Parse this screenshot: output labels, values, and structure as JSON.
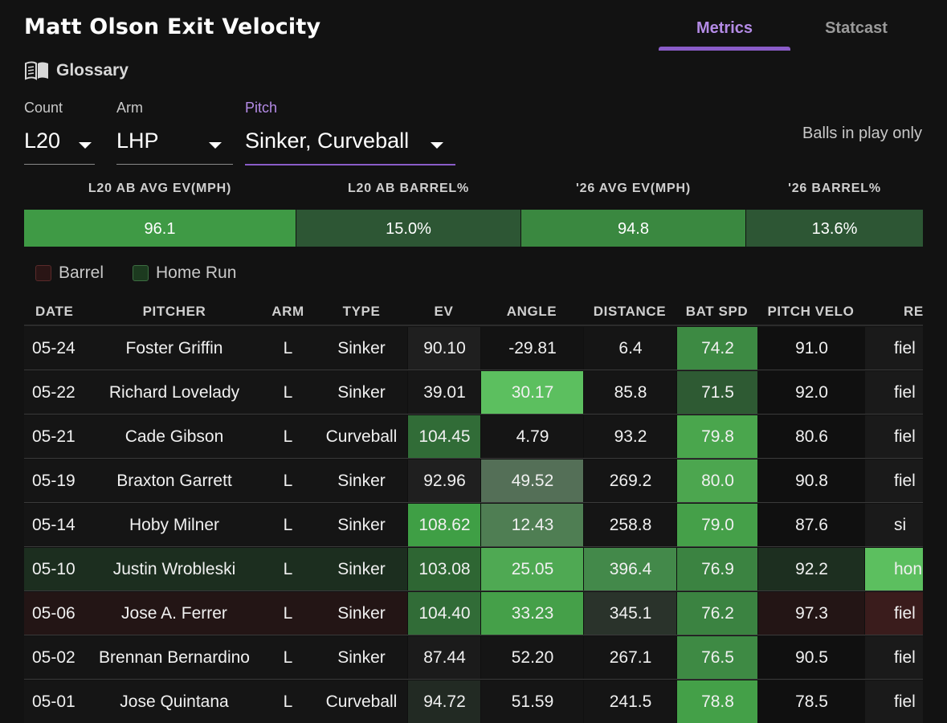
{
  "header": {
    "title": "Matt Olson Exit Velocity"
  },
  "tabs": [
    {
      "label": "Metrics",
      "active": true
    },
    {
      "label": "Statcast",
      "active": false
    }
  ],
  "glossary": {
    "label": "Glossary",
    "icon": "book-icon"
  },
  "filters": {
    "count": {
      "label": "Count",
      "value": "L20"
    },
    "arm": {
      "label": "Arm",
      "value": "LHP"
    },
    "pitch": {
      "label": "Pitch",
      "value": "Sinker, Curveball"
    },
    "balls_in_play_note": "Balls in play only"
  },
  "summary": [
    {
      "label": "L20 AB AVG EV(MPH)",
      "value": "96.1",
      "color": "#3f9a45"
    },
    {
      "label": "L20 AB BARREL%",
      "value": "15.0%",
      "color": "#2d5634"
    },
    {
      "label": "'26 AVG EV(MPH)",
      "value": "94.8",
      "color": "#3a8840"
    },
    {
      "label": "'26 BARREL%",
      "value": "13.6%",
      "color": "#2d5634"
    }
  ],
  "legend": [
    {
      "label": "Barrel",
      "fill": "#2a1515",
      "border": "#5a2a2a"
    },
    {
      "label": "Home Run",
      "fill": "#1c3a1f",
      "border": "#3d6e42"
    }
  ],
  "table": {
    "columns": [
      "DATE",
      "PITCHER",
      "ARM",
      "TYPE",
      "EV",
      "ANGLE",
      "DISTANCE",
      "BAT SPD",
      "PITCH VELO",
      "RE"
    ],
    "rows": [
      {
        "cells": [
          "05-24",
          "Foster Griffin",
          "L",
          "Sinker",
          "90.10",
          "-29.81",
          "6.4",
          "74.2",
          "91.0",
          "fiel"
        ],
        "row_bg": "#151515",
        "cell_bg": [
          "",
          "",
          "",
          "",
          "#1f1f1f",
          "#131313",
          "#151515",
          "#3d8a43",
          "#101010",
          "#1a1a1a"
        ]
      },
      {
        "cells": [
          "05-22",
          "Richard Lovelady",
          "L",
          "Sinker",
          "39.01",
          "30.17",
          "85.8",
          "71.5",
          "92.0",
          "fiel"
        ],
        "row_bg": "#151515",
        "cell_bg": [
          "",
          "",
          "",
          "",
          "#171717",
          "#5cbf5f",
          "#151515",
          "#2e5a33",
          "#101010",
          "#1a1a1a"
        ]
      },
      {
        "cells": [
          "05-21",
          "Cade Gibson",
          "L",
          "Curveball",
          "104.45",
          "4.79",
          "93.2",
          "79.8",
          "80.6",
          "fiel"
        ],
        "row_bg": "#151515",
        "cell_bg": [
          "",
          "",
          "",
          "",
          "#316c37",
          "#151515",
          "#151515",
          "#4aa64d",
          "#101010",
          "#1a1a1a"
        ]
      },
      {
        "cells": [
          "05-19",
          "Braxton Garrett",
          "L",
          "Sinker",
          "92.96",
          "49.52",
          "269.2",
          "80.0",
          "90.8",
          "fiel"
        ],
        "row_bg": "#151515",
        "cell_bg": [
          "",
          "",
          "",
          "",
          "#1f1f1f",
          "#546f57",
          "#151515",
          "#4ca64f",
          "#101010",
          "#1a1a1a"
        ]
      },
      {
        "cells": [
          "05-14",
          "Hoby Milner",
          "L",
          "Sinker",
          "108.62",
          "12.43",
          "258.8",
          "79.0",
          "87.6",
          "si"
        ],
        "row_bg": "#151515",
        "cell_bg": [
          "",
          "",
          "",
          "",
          "#3f9f45",
          "#4f7e53",
          "#151515",
          "#45a049",
          "#101010",
          "#1a1a1a"
        ]
      },
      {
        "cells": [
          "05-10",
          "Justin Wrobleski",
          "L",
          "Sinker",
          "103.08",
          "25.05",
          "396.4",
          "76.9",
          "92.2",
          "hon"
        ],
        "row_bg": "#1c2e1f",
        "cell_bg": [
          "",
          "",
          "",
          "",
          "#2e6633",
          "#4fa953",
          "#43894a",
          "#3b8341",
          "#1d2f20",
          "#5cbf5f"
        ]
      },
      {
        "cells": [
          "05-06",
          "Jose A. Ferrer",
          "L",
          "Sinker",
          "104.40",
          "33.23",
          "345.1",
          "76.2",
          "97.3",
          "fiel"
        ],
        "row_bg": "#231515",
        "cell_bg": [
          "",
          "",
          "",
          "",
          "#316c37",
          "#45a049",
          "#2a332b",
          "#3b8341",
          "#231515",
          "#3a1c1c"
        ]
      },
      {
        "cells": [
          "05-02",
          "Brennan Bernardino",
          "L",
          "Sinker",
          "87.44",
          "52.20",
          "267.1",
          "76.5",
          "90.5",
          "fiel"
        ],
        "row_bg": "#151515",
        "cell_bg": [
          "",
          "",
          "",
          "",
          "#1b1b1b",
          "#151515",
          "#151515",
          "#3e8a44",
          "#101010",
          "#1a1a1a"
        ]
      },
      {
        "cells": [
          "05-01",
          "Jose Quintana",
          "L",
          "Curveball",
          "94.72",
          "51.59",
          "241.5",
          "78.8",
          "78.5",
          "fiel"
        ],
        "row_bg": "#151515",
        "cell_bg": [
          "",
          "",
          "",
          "",
          "#222a23",
          "#151515",
          "#151515",
          "#44a048",
          "#101010",
          "#1a1a1a"
        ]
      }
    ]
  }
}
